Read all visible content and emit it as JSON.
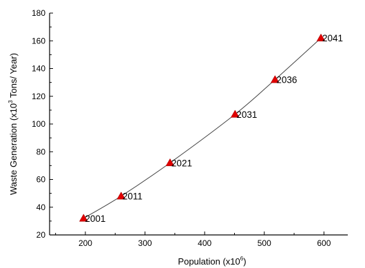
{
  "chart_data": {
    "type": "scatter",
    "xlabel": "Population (x10",
    "xlabel_sup": "6",
    "xlabel_suffix": ")",
    "ylabel": "Waste Generation (x10",
    "ylabel_sup": "3",
    "ylabel_suffix": " Tons/ Year)",
    "xlim": [
      140,
      640
    ],
    "ylim": [
      20,
      180
    ],
    "xticks": [
      200,
      300,
      400,
      500,
      600
    ],
    "yticks": [
      20,
      40,
      60,
      80,
      100,
      120,
      140,
      160,
      180
    ],
    "grid": false,
    "marker_color": "#e00000",
    "line_color": "#444444",
    "points": [
      {
        "x": 197,
        "y": 32,
        "label": "2001"
      },
      {
        "x": 260,
        "y": 48,
        "label": "2011"
      },
      {
        "x": 342,
        "y": 72,
        "label": "2021"
      },
      {
        "x": 451,
        "y": 107,
        "label": "2031"
      },
      {
        "x": 518,
        "y": 132,
        "label": "2036"
      },
      {
        "x": 595,
        "y": 162,
        "label": "2041"
      }
    ]
  }
}
